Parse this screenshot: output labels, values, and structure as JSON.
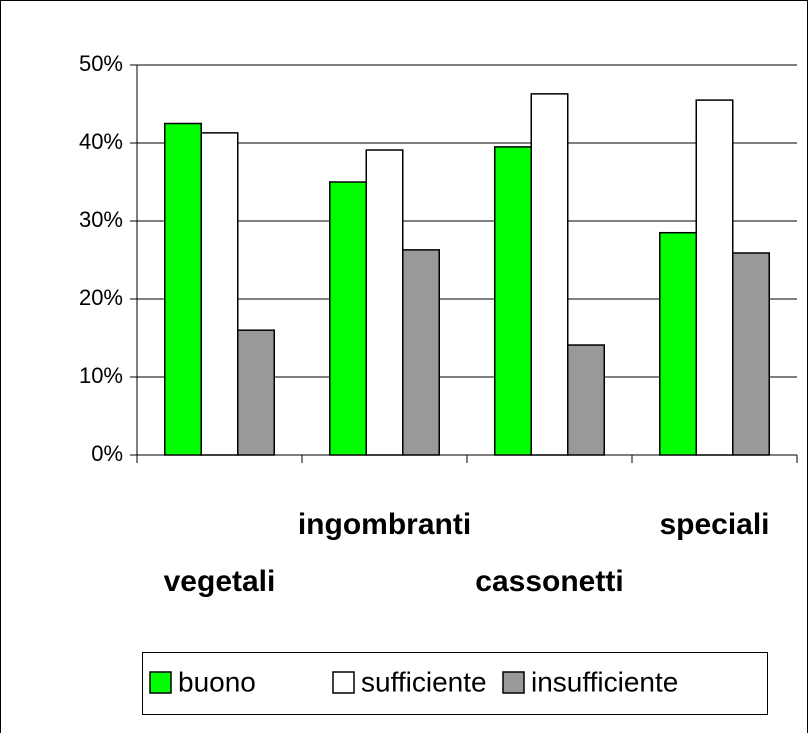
{
  "chart_data": {
    "type": "bar",
    "categories": [
      "vegetali",
      "ingombranti",
      "cassonetti",
      "speciali"
    ],
    "series": [
      {
        "name": "buono",
        "color": "#00ff00",
        "values": [
          42.5,
          35,
          39.5,
          28.5
        ]
      },
      {
        "name": "sufficiente",
        "color": "#ffffff",
        "values": [
          41.3,
          39.1,
          46.3,
          45.5
        ]
      },
      {
        "name": "insufficiente",
        "color": "#999999",
        "values": [
          16,
          26.3,
          14.1,
          25.9
        ]
      }
    ],
    "ylim": [
      0,
      50
    ],
    "yticks": [
      {
        "value": 0,
        "label": "0%"
      },
      {
        "value": 10,
        "label": "10%"
      },
      {
        "value": 20,
        "label": "20%"
      },
      {
        "value": 30,
        "label": "30%"
      },
      {
        "value": 40,
        "label": "40%"
      },
      {
        "value": 50,
        "label": "50%"
      }
    ],
    "grid": true,
    "legend": "bottom"
  }
}
